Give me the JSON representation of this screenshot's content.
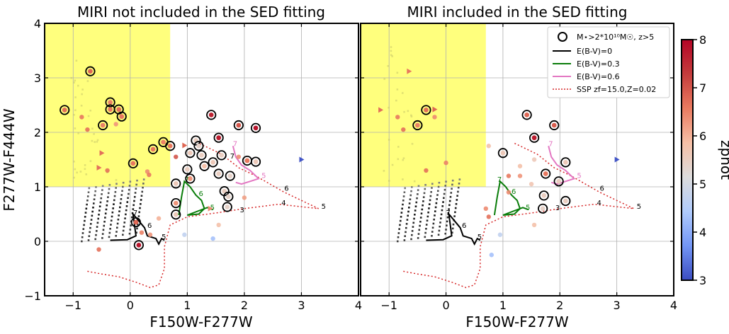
{
  "colorbar": {
    "label": "zphot",
    "min": 3,
    "max": 8,
    "ticks": [
      "3",
      "4",
      "5",
      "6",
      "7",
      "8"
    ],
    "colors": [
      "#3b4cc0",
      "#7396f5",
      "#b0cbfc",
      "#dddcdc",
      "#f6bfa6",
      "#ea7b60",
      "#c43c3c",
      "#b40426"
    ]
  },
  "legend": {
    "marker_label": "M⋆>2*10¹⁰M☉, z>5",
    "entries": [
      {
        "label": "E(B-V)=0",
        "color": "#000000",
        "style": "solid"
      },
      {
        "label": "E(B-V)=0.3",
        "color": "#0a7d0a",
        "style": "solid"
      },
      {
        "label": "E(B-V)=0.6",
        "color": "#e377c2",
        "style": "solid"
      },
      {
        "label": "SSP zf=15.0,Z=0.02",
        "color": "#d62728",
        "style": "dotted"
      }
    ]
  },
  "chart_data": [
    {
      "type": "scatter",
      "title": "MIRI not included in the SED fitting",
      "xlabel": "F150W-F277W",
      "ylabel": "F277W-F444W",
      "xlim": [
        -1.5,
        4
      ],
      "ylim": [
        -1,
        4
      ],
      "xticks": [
        "−1",
        "0",
        "1",
        "2",
        "3",
        "4"
      ],
      "yticks": [
        "−1",
        "0",
        "1",
        "2",
        "3",
        "4"
      ],
      "grid": true,
      "shaded_region": {
        "x": [
          -1.5,
          0.7
        ],
        "y": [
          1.0,
          4.0
        ],
        "color": "#ffff66"
      },
      "track_labels": [
        {
          "text": "7",
          "x": 0.05,
          "y": 0.48,
          "color": "#000000"
        },
        {
          "text": "6",
          "x": 0.3,
          "y": 0.25,
          "color": "#000000"
        },
        {
          "text": "5",
          "x": 0.55,
          "y": 0.04,
          "color": "#000000"
        },
        {
          "text": "7",
          "x": 0.95,
          "y": 1.09,
          "color": "#0a7d0a"
        },
        {
          "text": "6",
          "x": 1.2,
          "y": 0.83,
          "color": "#0a7d0a"
        },
        {
          "text": "5",
          "x": 1.4,
          "y": 0.58,
          "color": "#0a7d0a"
        },
        {
          "text": "7",
          "x": 1.8,
          "y": 1.75,
          "color": "#e377c2"
        },
        {
          "text": "5",
          "x": 2.3,
          "y": 1.16,
          "color": "#e377c2"
        },
        {
          "text": "7",
          "x": 1.75,
          "y": 1.52,
          "color": "#000000"
        },
        {
          "text": "6",
          "x": 2.7,
          "y": 0.93,
          "color": "#000000"
        },
        {
          "text": "5",
          "x": 3.35,
          "y": 0.6,
          "color": "#000000"
        },
        {
          "text": "4",
          "x": 2.65,
          "y": 0.66,
          "color": "#000000"
        },
        {
          "text": "3",
          "x": 1.92,
          "y": 0.53,
          "color": "#000000"
        }
      ],
      "massive_points": [
        {
          "x": -1.15,
          "y": 2.41,
          "z": 6.7
        },
        {
          "x": -0.7,
          "y": 3.12,
          "z": 6.8
        },
        {
          "x": -0.35,
          "y": 2.55,
          "z": 6.5
        },
        {
          "x": -0.35,
          "y": 2.42,
          "z": 6.6
        },
        {
          "x": -0.2,
          "y": 2.42,
          "z": 6.7
        },
        {
          "x": -0.15,
          "y": 2.29,
          "z": 6.6
        },
        {
          "x": -0.48,
          "y": 2.13,
          "z": 6.5
        },
        {
          "x": 0.05,
          "y": 1.43,
          "z": 6.6
        },
        {
          "x": 0.4,
          "y": 1.69,
          "z": 6.6
        },
        {
          "x": 0.58,
          "y": 1.82,
          "z": 6.5
        },
        {
          "x": 0.7,
          "y": 1.75,
          "z": 6.6
        },
        {
          "x": 1.42,
          "y": 2.32,
          "z": 7.6
        },
        {
          "x": 1.55,
          "y": 1.9,
          "z": 7.7
        },
        {
          "x": 1.9,
          "y": 2.13,
          "z": 7.0
        },
        {
          "x": 2.2,
          "y": 2.08,
          "z": 7.8
        },
        {
          "x": 1.15,
          "y": 1.85,
          "z": 5.5
        },
        {
          "x": 1.2,
          "y": 1.75,
          "z": 5.4
        },
        {
          "x": 1.05,
          "y": 1.62,
          "z": 5.6
        },
        {
          "x": 1.25,
          "y": 1.58,
          "z": 5.5
        },
        {
          "x": 1.3,
          "y": 1.38,
          "z": 5.8
        },
        {
          "x": 1.45,
          "y": 1.45,
          "z": 5.6
        },
        {
          "x": 1.6,
          "y": 1.58,
          "z": 5.5
        },
        {
          "x": 2.05,
          "y": 1.48,
          "z": 6.6
        },
        {
          "x": 2.2,
          "y": 1.46,
          "z": 5.6
        },
        {
          "x": 1.0,
          "y": 1.32,
          "z": 5.5
        },
        {
          "x": 1.05,
          "y": 1.15,
          "z": 6.3
        },
        {
          "x": 0.8,
          "y": 1.06,
          "z": 5.6
        },
        {
          "x": 1.55,
          "y": 1.24,
          "z": 5.5
        },
        {
          "x": 1.75,
          "y": 1.2,
          "z": 5.4
        },
        {
          "x": 1.65,
          "y": 0.92,
          "z": 5.5
        },
        {
          "x": 1.72,
          "y": 0.82,
          "z": 5.4
        },
        {
          "x": 1.7,
          "y": 0.63,
          "z": 5.4
        },
        {
          "x": 0.8,
          "y": 0.7,
          "z": 6.3
        },
        {
          "x": 0.8,
          "y": 0.49,
          "z": 5.6
        },
        {
          "x": 0.1,
          "y": 0.35,
          "z": 6.8
        },
        {
          "x": 0.15,
          "y": -0.07,
          "z": 7.8
        }
      ],
      "other_points": [
        {
          "x": -0.85,
          "y": 2.28,
          "z": 6.6
        },
        {
          "x": -0.75,
          "y": 2.05,
          "z": 6.7
        },
        {
          "x": -0.25,
          "y": 2.15,
          "z": 6.3
        },
        {
          "x": -0.4,
          "y": 1.3,
          "z": 6.7
        },
        {
          "x": 0.3,
          "y": 1.28,
          "z": 6.4
        },
        {
          "x": 0.33,
          "y": 1.22,
          "z": 6.6
        },
        {
          "x": 0.8,
          "y": 1.55,
          "z": 7.0
        },
        {
          "x": 0.2,
          "y": 0.16,
          "z": 6.5
        },
        {
          "x": 0.35,
          "y": 0.12,
          "z": 6.3
        },
        {
          "x": 0.5,
          "y": 0.42,
          "z": 6.0
        },
        {
          "x": -0.55,
          "y": -0.15,
          "z": 6.7
        },
        {
          "x": 0.95,
          "y": 0.12,
          "z": 4.7
        },
        {
          "x": 1.45,
          "y": 0.05,
          "z": 4.3
        },
        {
          "x": 1.55,
          "y": 0.3,
          "z": 5.8
        },
        {
          "x": 2.0,
          "y": 0.8,
          "z": 6.2
        },
        {
          "x": 1.9,
          "y": 1.55,
          "z": 6.4
        }
      ],
      "triangles": [
        {
          "x": -0.5,
          "y": 1.62,
          "z": 6.7
        },
        {
          "x": -0.55,
          "y": 1.35,
          "z": 6.7
        },
        {
          "x": 0.95,
          "y": 1.76,
          "z": 6.8
        },
        {
          "x": 3.0,
          "y": 1.5,
          "z": 3.1
        },
        {
          "x": 1.4,
          "y": 0.6,
          "z": 6.4
        }
      ]
    },
    {
      "type": "scatter",
      "title": "MIRI included in the SED fitting",
      "xlabel": "F150W-F277W",
      "ylabel": "",
      "xlim": [
        -1.5,
        4
      ],
      "ylim": [
        -1,
        4
      ],
      "xticks": [
        "−1",
        "0",
        "1",
        "2",
        "3",
        "4"
      ],
      "yticks": [],
      "grid": true,
      "shaded_region": {
        "x": [
          -1.5,
          0.7
        ],
        "y": [
          1.0,
          4.0
        ],
        "color": "#ffff66"
      },
      "track_labels": [
        {
          "text": "7",
          "x": 0.0,
          "y": 0.48,
          "color": "#000000"
        },
        {
          "text": "6",
          "x": 0.28,
          "y": 0.25,
          "color": "#000000"
        },
        {
          "text": "5",
          "x": 0.55,
          "y": 0.04,
          "color": "#000000"
        },
        {
          "text": "7",
          "x": 0.9,
          "y": 1.09,
          "color": "#0a7d0a"
        },
        {
          "text": "6",
          "x": 1.15,
          "y": 0.87,
          "color": "#0a7d0a"
        },
        {
          "text": "5",
          "x": 1.4,
          "y": 0.58,
          "color": "#0a7d0a"
        },
        {
          "text": "7",
          "x": 1.8,
          "y": 1.75,
          "color": "#e377c2"
        },
        {
          "text": "5",
          "x": 2.3,
          "y": 1.16,
          "color": "#e377c2"
        },
        {
          "text": "6",
          "x": 2.7,
          "y": 0.93,
          "color": "#000000"
        },
        {
          "text": "5",
          "x": 3.35,
          "y": 0.6,
          "color": "#000000"
        },
        {
          "text": "4",
          "x": 2.65,
          "y": 0.66,
          "color": "#000000"
        },
        {
          "text": "3",
          "x": 1.92,
          "y": 0.57,
          "color": "#000000"
        }
      ],
      "massive_points": [
        {
          "x": -0.35,
          "y": 2.41,
          "z": 6.7
        },
        {
          "x": -0.5,
          "y": 2.13,
          "z": 6.5
        },
        {
          "x": 1.42,
          "y": 2.32,
          "z": 6.8
        },
        {
          "x": 1.55,
          "y": 1.9,
          "z": 7.7
        },
        {
          "x": 1.9,
          "y": 2.13,
          "z": 6.9
        },
        {
          "x": 1.0,
          "y": 1.62,
          "z": 5.6
        },
        {
          "x": 2.1,
          "y": 1.45,
          "z": 5.6
        },
        {
          "x": 1.75,
          "y": 1.24,
          "z": 6.6
        },
        {
          "x": 1.98,
          "y": 1.1,
          "z": 5.5
        },
        {
          "x": 1.72,
          "y": 0.84,
          "z": 5.5
        },
        {
          "x": 1.7,
          "y": 0.6,
          "z": 5.4
        },
        {
          "x": 2.1,
          "y": 0.74,
          "z": 5.5
        }
      ],
      "other_points": [
        {
          "x": -0.85,
          "y": 2.28,
          "z": 6.6
        },
        {
          "x": -0.75,
          "y": 2.05,
          "z": 6.7
        },
        {
          "x": -0.2,
          "y": 2.28,
          "z": 6.4
        },
        {
          "x": -0.35,
          "y": 1.3,
          "z": 6.7
        },
        {
          "x": 0.0,
          "y": 1.44,
          "z": 6.5
        },
        {
          "x": 0.75,
          "y": 1.75,
          "z": 5.8
        },
        {
          "x": 1.3,
          "y": 1.38,
          "z": 5.8
        },
        {
          "x": 1.55,
          "y": 1.5,
          "z": 5.6
        },
        {
          "x": 1.3,
          "y": 1.2,
          "z": 6.3
        },
        {
          "x": 1.1,
          "y": 1.2,
          "z": 6.6
        },
        {
          "x": 1.5,
          "y": 1.05,
          "z": 5.7
        },
        {
          "x": 0.7,
          "y": 0.6,
          "z": 6.4
        },
        {
          "x": 1.1,
          "y": 0.9,
          "z": 6.4
        },
        {
          "x": 0.75,
          "y": 0.45,
          "z": 6.7
        },
        {
          "x": 0.95,
          "y": 0.12,
          "z": 4.7
        },
        {
          "x": 0.8,
          "y": -0.25,
          "z": 4.3
        },
        {
          "x": 1.55,
          "y": 0.3,
          "z": 5.8
        }
      ],
      "triangles": [
        {
          "x": -1.15,
          "y": 2.41,
          "z": 6.7
        },
        {
          "x": -0.65,
          "y": 3.12,
          "z": 6.6
        },
        {
          "x": -0.2,
          "y": 2.42,
          "z": 6.8
        },
        {
          "x": 3.0,
          "y": 1.5,
          "z": 3.1
        }
      ]
    }
  ]
}
